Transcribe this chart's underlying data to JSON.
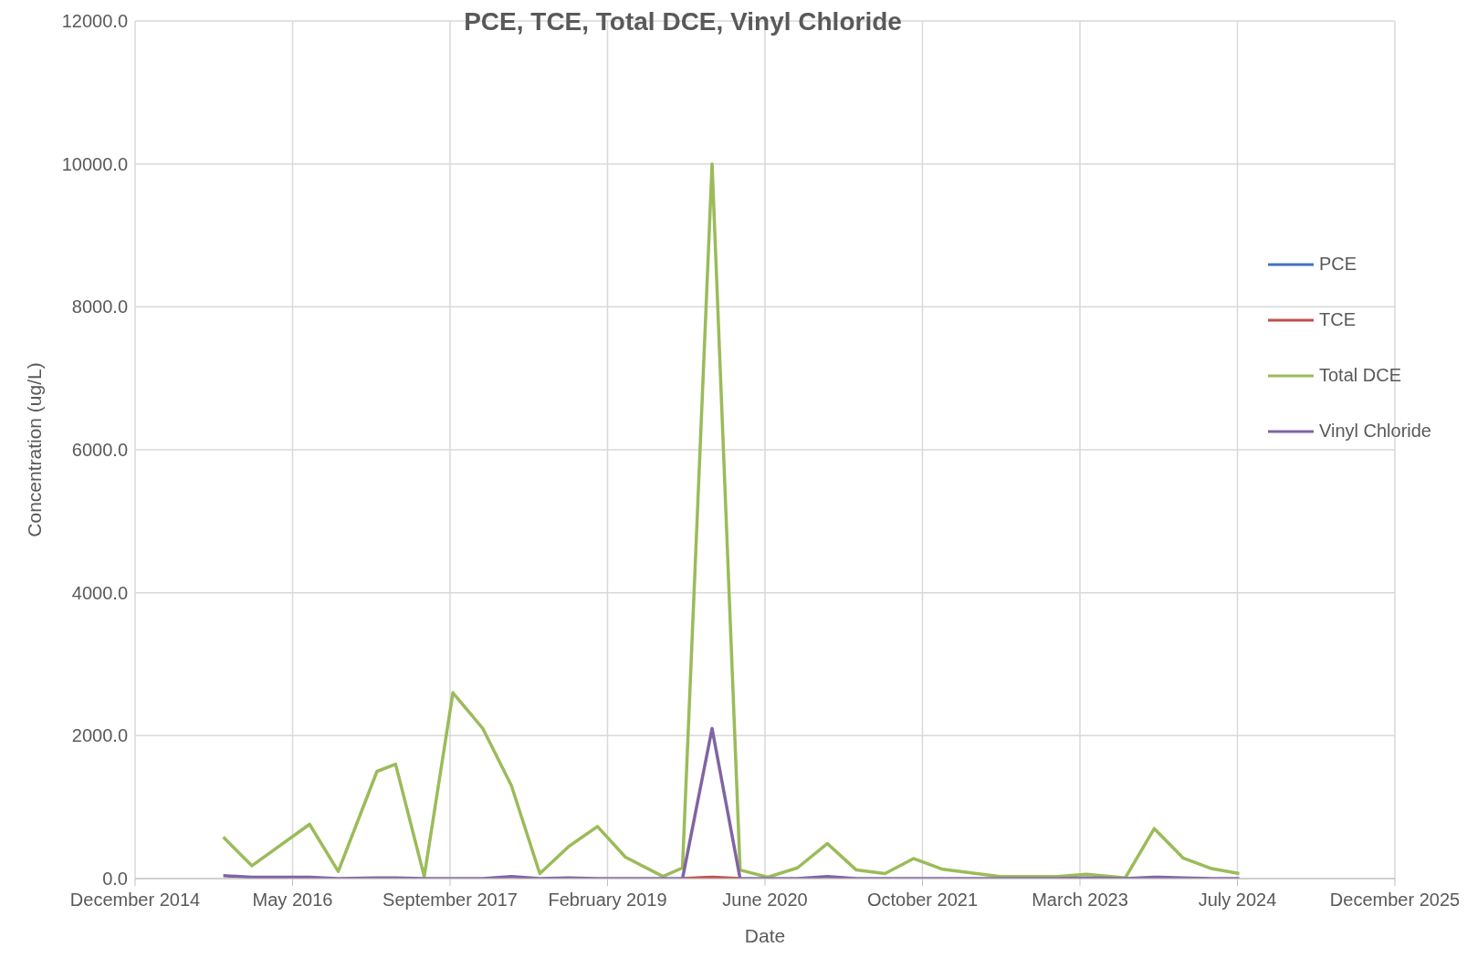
{
  "chart_data": {
    "type": "line",
    "title": "PCE, TCE, Total DCE, Vinyl Chloride",
    "xlabel": "Date",
    "ylabel": "Concentration (ug/L)",
    "x": [
      "2015-10-01",
      "2015-12-31",
      "2016-07-01",
      "2016-09-30",
      "2017-01-31",
      "2017-03-31",
      "2017-06-30",
      "2017-09-29",
      "2018-01-02",
      "2018-04-03",
      "2018-07-02",
      "2018-10-02",
      "2019-01-01",
      "2019-03-31",
      "2019-07-28",
      "2019-09-28",
      "2019-12-31",
      "2020-03-29",
      "2020-06-25",
      "2020-09-27",
      "2020-12-31",
      "2021-04-02",
      "2021-07-02",
      "2021-10-01",
      "2022-01-01",
      "2022-04-02",
      "2022-07-02",
      "2022-10-02",
      "2023-01-01",
      "2023-04-02",
      "2023-08-04",
      "2023-11-04",
      "2024-02-03",
      "2024-05-04",
      "2024-07-31"
    ],
    "series": [
      {
        "name": "PCE",
        "color": "#4472c4",
        "values": [
          null,
          null,
          null,
          null,
          null,
          null,
          null,
          null,
          null,
          null,
          null,
          null,
          null,
          null,
          null,
          null,
          null,
          null,
          null,
          null,
          null,
          null,
          null,
          null,
          null,
          null,
          null,
          null,
          null,
          null,
          null,
          null,
          null,
          null,
          null
        ]
      },
      {
        "name": "TCE",
        "color": "#c0504d",
        "values": [
          null,
          null,
          null,
          null,
          null,
          null,
          null,
          null,
          null,
          null,
          null,
          null,
          null,
          null,
          null,
          0,
          20,
          0,
          null,
          null,
          null,
          null,
          null,
          null,
          null,
          null,
          null,
          null,
          null,
          null,
          null,
          null,
          null,
          null,
          null
        ]
      },
      {
        "name": "Total DCE",
        "color": "#9bbb59",
        "values": [
          580,
          180,
          760,
          100,
          1500,
          1600,
          30,
          2600,
          2100,
          1300,
          70,
          450,
          730,
          300,
          30,
          150,
          10000,
          120,
          20,
          150,
          490,
          120,
          70,
          280,
          130,
          80,
          30,
          30,
          30,
          60,
          10,
          700,
          290,
          140,
          70
        ]
      },
      {
        "name": "Vinyl Chloride",
        "color": "#8064a2",
        "values": [
          40,
          20,
          20,
          0,
          10,
          10,
          0,
          0,
          0,
          30,
          0,
          10,
          0,
          0,
          0,
          0,
          2100,
          0,
          0,
          0,
          30,
          0,
          0,
          0,
          0,
          0,
          0,
          0,
          0,
          10,
          0,
          20,
          10,
          0,
          0
        ]
      }
    ],
    "xlim": [
      "2014-12-25",
      "2025-12-07"
    ],
    "xticks": [
      {
        "value": "2014-12-25",
        "label": "December 2014"
      },
      {
        "value": "2016-05-08",
        "label": "May 2016"
      },
      {
        "value": "2017-09-20",
        "label": "September 2017"
      },
      {
        "value": "2019-02-02",
        "label": "February 2019"
      },
      {
        "value": "2020-06-16",
        "label": "June 2020"
      },
      {
        "value": "2021-10-29",
        "label": "October 2021"
      },
      {
        "value": "2023-03-13",
        "label": "March 2023"
      },
      {
        "value": "2024-07-25",
        "label": "July 2024"
      },
      {
        "value": "2025-12-07",
        "label": "December 2025"
      }
    ],
    "ylim": [
      0,
      12000
    ],
    "yticks": [
      {
        "value": 0,
        "label": "0.0"
      },
      {
        "value": 2000,
        "label": "2000.0"
      },
      {
        "value": 4000,
        "label": "4000.0"
      },
      {
        "value": 6000,
        "label": "6000.0"
      },
      {
        "value": 8000,
        "label": "8000.0"
      },
      {
        "value": 10000,
        "label": "10000.0"
      },
      {
        "value": 12000,
        "label": "12000.0"
      }
    ],
    "grid": true,
    "legend": "right",
    "marker": "none",
    "line_style": "solid"
  }
}
